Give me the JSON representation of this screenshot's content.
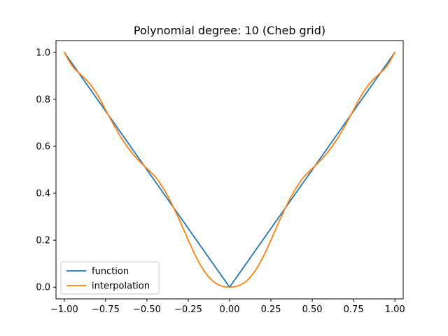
{
  "chart_data": {
    "type": "line",
    "title": "Polynomial degree: 10 (Cheb grid)",
    "xlabel": "",
    "ylabel": "",
    "xlim": [
      -1.05,
      1.05
    ],
    "ylim": [
      -0.05,
      1.05
    ],
    "x_ticks": [
      -1.0,
      -0.75,
      -0.5,
      -0.25,
      0.0,
      0.25,
      0.5,
      0.75,
      1.0
    ],
    "x_tick_labels": [
      "−1.00",
      "−0.75",
      "−0.50",
      "−0.25",
      "0.00",
      "0.25",
      "0.50",
      "0.75",
      "1.00"
    ],
    "y_ticks": [
      0.0,
      0.2,
      0.4,
      0.6,
      0.8,
      1.0
    ],
    "y_tick_labels": [
      "0.0",
      "0.2",
      "0.4",
      "0.6",
      "0.8",
      "1.0"
    ],
    "grid": false,
    "legend": {
      "position": "lower-left",
      "entries": [
        "function",
        "interpolation"
      ]
    },
    "series": [
      {
        "name": "function",
        "color": "#1f77b4",
        "x": [
          -1.0,
          -0.75,
          -0.5,
          -0.25,
          0.0,
          0.25,
          0.5,
          0.75,
          1.0
        ],
        "y": [
          1.0,
          0.75,
          0.5,
          0.25,
          0.0,
          0.25,
          0.5,
          0.75,
          1.0
        ]
      },
      {
        "name": "interpolation",
        "color": "#ff7f0e",
        "x": [
          -1.0,
          -0.95,
          -0.9,
          -0.85,
          -0.8,
          -0.75,
          -0.7,
          -0.65,
          -0.6,
          -0.55,
          -0.5,
          -0.45,
          -0.4,
          -0.35,
          -0.3,
          -0.25,
          -0.2,
          -0.15,
          -0.1,
          -0.05,
          0.0,
          0.05,
          0.1,
          0.15,
          0.2,
          0.25,
          0.3,
          0.35,
          0.4,
          0.45,
          0.5,
          0.55,
          0.6,
          0.65,
          0.7,
          0.75,
          0.8,
          0.85,
          0.9,
          0.95,
          1.0
        ],
        "y": [
          1.0,
          0.94,
          0.905,
          0.87,
          0.82,
          0.755,
          0.69,
          0.63,
          0.58,
          0.54,
          0.505,
          0.47,
          0.42,
          0.355,
          0.28,
          0.2,
          0.125,
          0.065,
          0.025,
          0.005,
          0.0,
          0.005,
          0.025,
          0.065,
          0.125,
          0.2,
          0.28,
          0.355,
          0.42,
          0.47,
          0.505,
          0.54,
          0.58,
          0.63,
          0.69,
          0.755,
          0.82,
          0.87,
          0.905,
          0.94,
          1.0
        ]
      }
    ]
  }
}
